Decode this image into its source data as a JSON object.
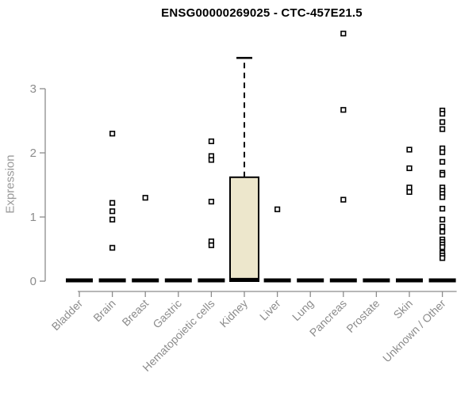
{
  "page": {
    "title": "ENSG00000269025 - CTC-457E21.5"
  },
  "chart_data": {
    "type": "boxplot",
    "title": "ENSG00000269025 - CTC-457E21.5",
    "ylabel": "Expression",
    "xlabel": "",
    "ylim": [
      0,
      3.9
    ],
    "yticks": [
      0,
      1,
      2,
      3
    ],
    "grid": false,
    "legend": "none",
    "categories": [
      "Bladder",
      "Brain",
      "Breast",
      "Gastric",
      "Hematopoietic cells",
      "Kidney",
      "Liver",
      "Lung",
      "Pancreas",
      "Prostate",
      "Skin",
      "Unknown / Other"
    ],
    "series": [
      {
        "category": "Bladder",
        "q1": 0,
        "median": 0,
        "q3": 0,
        "whisker_low": 0,
        "whisker_high": 0,
        "outliers": []
      },
      {
        "category": "Brain",
        "q1": 0,
        "median": 0,
        "q3": 0,
        "whisker_low": 0,
        "whisker_high": 0,
        "outliers": [
          2.3,
          1.22,
          1.09,
          0.96,
          0.52
        ]
      },
      {
        "category": "Breast",
        "q1": 0,
        "median": 0,
        "q3": 0,
        "whisker_low": 0,
        "whisker_high": 0,
        "outliers": [
          1.3
        ]
      },
      {
        "category": "Gastric",
        "q1": 0,
        "median": 0,
        "q3": 0,
        "whisker_low": 0,
        "whisker_high": 0,
        "outliers": []
      },
      {
        "category": "Hematopoietic cells",
        "q1": 0,
        "median": 0,
        "q3": 0,
        "whisker_low": 0,
        "whisker_high": 0,
        "outliers": [
          2.18,
          1.95,
          1.89,
          1.24,
          0.62,
          0.56
        ]
      },
      {
        "category": "Kidney",
        "q1": 0,
        "median": 0.02,
        "q3": 1.62,
        "whisker_low": 0,
        "whisker_high": 3.48,
        "outliers": []
      },
      {
        "category": "Liver",
        "q1": 0,
        "median": 0,
        "q3": 0,
        "whisker_low": 0,
        "whisker_high": 0,
        "outliers": [
          1.12
        ]
      },
      {
        "category": "Lung",
        "q1": 0,
        "median": 0,
        "q3": 0,
        "whisker_low": 0,
        "whisker_high": 0,
        "outliers": []
      },
      {
        "category": "Pancreas",
        "q1": 0,
        "median": 0,
        "q3": 0,
        "whisker_low": 0,
        "whisker_high": 0,
        "outliers": [
          3.86,
          2.67,
          1.27
        ]
      },
      {
        "category": "Prostate",
        "q1": 0,
        "median": 0,
        "q3": 0,
        "whisker_low": 0,
        "whisker_high": 0,
        "outliers": []
      },
      {
        "category": "Skin",
        "q1": 0,
        "median": 0,
        "q3": 0,
        "whisker_low": 0,
        "whisker_high": 0,
        "outliers": [
          2.05,
          1.76,
          1.46,
          1.39
        ]
      },
      {
        "category": "Unknown / Other",
        "q1": 0,
        "median": 0,
        "q3": 0,
        "whisker_low": 0,
        "whisker_high": 0,
        "outliers": [
          2.66,
          2.61,
          2.48,
          2.37,
          2.07,
          2.01,
          1.86,
          1.69,
          1.66,
          1.46,
          1.41,
          1.36,
          1.31,
          1.13,
          0.96,
          0.85,
          0.77,
          0.65,
          0.61,
          0.57,
          0.53,
          0.44,
          0.4,
          0.36
        ]
      }
    ],
    "colors": {
      "box_fill": "#EDE7CC",
      "box_stroke": "#000000",
      "outlier_stroke": "#000000",
      "outlier_fill": "#ffffff",
      "axis": "#8C8C8C",
      "tick_label": "#8C8C8C",
      "title": "#000000"
    }
  }
}
